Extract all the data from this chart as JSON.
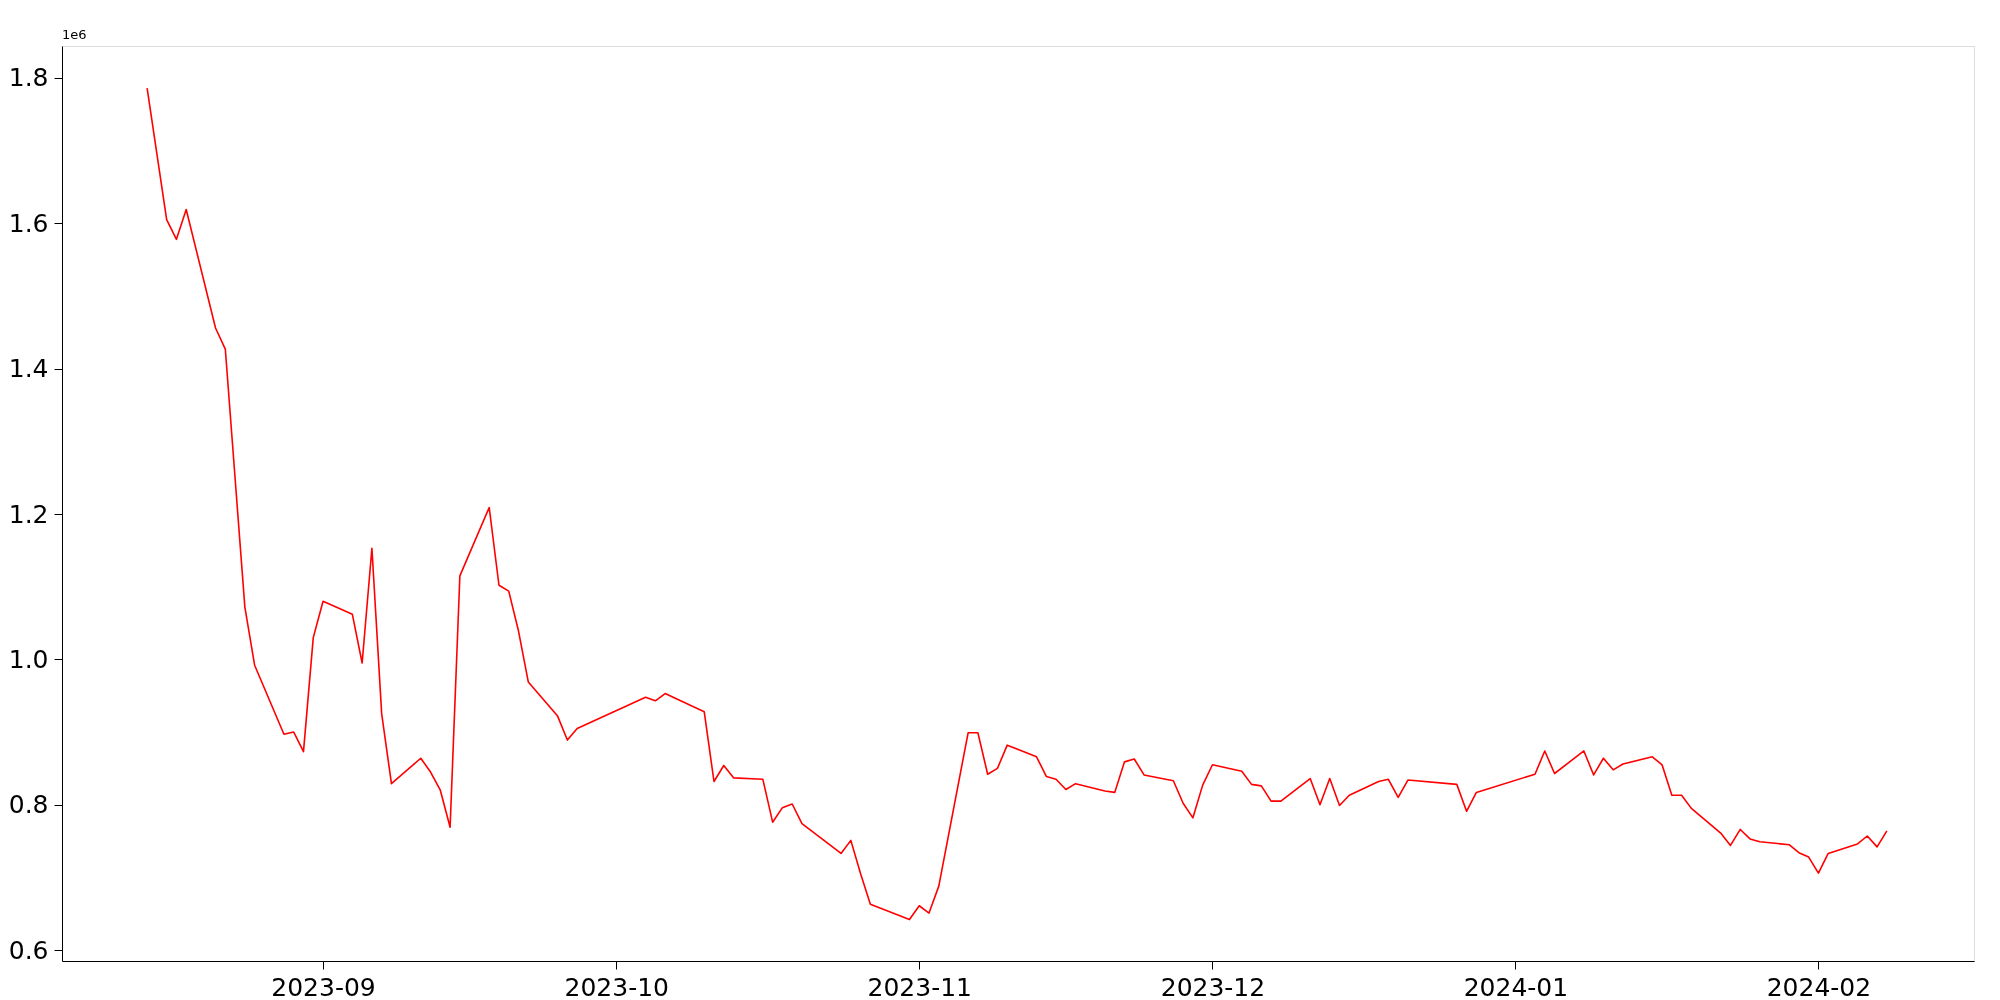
{
  "chart_data": {
    "type": "line",
    "annotations": [
      "1e6"
    ],
    "x": [
      "2023-08-14",
      "2023-08-16",
      "2023-08-17",
      "2023-08-18",
      "2023-08-21",
      "2023-08-22",
      "2023-08-24",
      "2023-08-25",
      "2023-08-28",
      "2023-08-29",
      "2023-08-30",
      "2023-08-31",
      "2023-09-01",
      "2023-09-04",
      "2023-09-05",
      "2023-09-06",
      "2023-09-07",
      "2023-09-08",
      "2023-09-11",
      "2023-09-12",
      "2023-09-13",
      "2023-09-14",
      "2023-09-15",
      "2023-09-18",
      "2023-09-19",
      "2023-09-20",
      "2023-09-21",
      "2023-09-22",
      "2023-09-25",
      "2023-09-26",
      "2023-09-27",
      "2023-10-04",
      "2023-10-05",
      "2023-10-06",
      "2023-10-10",
      "2023-10-11",
      "2023-10-12",
      "2023-10-13",
      "2023-10-16",
      "2023-10-17",
      "2023-10-18",
      "2023-10-19",
      "2023-10-20",
      "2023-10-24",
      "2023-10-25",
      "2023-10-26",
      "2023-10-27",
      "2023-10-31",
      "2023-11-01",
      "2023-11-02",
      "2023-11-03",
      "2023-11-06",
      "2023-11-07",
      "2023-11-08",
      "2023-11-09",
      "2023-11-10",
      "2023-11-13",
      "2023-11-14",
      "2023-11-15",
      "2023-11-16",
      "2023-11-17",
      "2023-11-20",
      "2023-11-21",
      "2023-11-22",
      "2023-11-23",
      "2023-11-24",
      "2023-11-27",
      "2023-11-28",
      "2023-11-29",
      "2023-11-30",
      "2023-12-01",
      "2023-12-04",
      "2023-12-05",
      "2023-12-06",
      "2023-12-07",
      "2023-12-08",
      "2023-12-11",
      "2023-12-12",
      "2023-12-13",
      "2023-12-14",
      "2023-12-15",
      "2023-12-18",
      "2023-12-19",
      "2023-12-20",
      "2023-12-21",
      "2023-12-26",
      "2023-12-27",
      "2023-12-28",
      "2024-01-03",
      "2024-01-04",
      "2024-01-05",
      "2024-01-08",
      "2024-01-09",
      "2024-01-10",
      "2024-01-11",
      "2024-01-12",
      "2024-01-15",
      "2024-01-16",
      "2024-01-17",
      "2024-01-18",
      "2024-01-19",
      "2024-01-22",
      "2024-01-23",
      "2024-01-24",
      "2024-01-25",
      "2024-01-26",
      "2024-01-29",
      "2024-01-30",
      "2024-01-31",
      "2024-02-01",
      "2024-02-02",
      "2024-02-05",
      "2024-02-06",
      "2024-02-07",
      "2024-02-08"
    ],
    "series": [
      {
        "color": "#ff0000",
        "values": [
          1.786,
          1.605,
          1.578,
          1.619,
          1.456,
          1.427,
          1.072,
          0.992,
          0.897,
          0.9,
          0.873,
          1.03,
          1.08,
          1.062,
          0.995,
          1.153,
          0.925,
          0.829,
          0.864,
          0.845,
          0.82,
          0.769,
          1.115,
          1.209,
          1.102,
          1.094,
          1.039,
          0.969,
          0.922,
          0.889,
          0.905,
          0.948,
          0.943,
          0.953,
          0.928,
          0.832,
          0.854,
          0.837,
          0.835,
          0.776,
          0.796,
          0.801,
          0.774,
          0.733,
          0.751,
          0.705,
          0.663,
          0.642,
          0.661,
          0.651,
          0.688,
          0.899,
          0.899,
          0.842,
          0.85,
          0.882,
          0.866,
          0.839,
          0.835,
          0.821,
          0.829,
          0.819,
          0.817,
          0.859,
          0.863,
          0.841,
          0.833,
          0.802,
          0.782,
          0.827,
          0.855,
          0.846,
          0.828,
          0.826,
          0.805,
          0.805,
          0.836,
          0.8,
          0.836,
          0.799,
          0.813,
          0.832,
          0.835,
          0.81,
          0.834,
          0.828,
          0.791,
          0.817,
          0.842,
          0.874,
          0.843,
          0.874,
          0.841,
          0.864,
          0.848,
          0.856,
          0.866,
          0.855,
          0.813,
          0.813,
          0.795,
          0.761,
          0.744,
          0.766,
          0.753,
          0.749,
          0.745,
          0.734,
          0.728,
          0.706,
          0.733,
          0.746,
          0.757,
          0.742,
          0.764
        ]
      }
    ],
    "xlim": [
      "2023-08-05T07:00",
      "2024-02-16T22:00"
    ],
    "xticks": [
      {
        "value": "2023-09-01",
        "label": "2023-09"
      },
      {
        "value": "2023-10-01",
        "label": "2023-10"
      },
      {
        "value": "2023-11-01",
        "label": "2023-11"
      },
      {
        "value": "2023-12-01",
        "label": "2023-12"
      },
      {
        "value": "2024-01-01",
        "label": "2024-01"
      },
      {
        "value": "2024-02-01",
        "label": "2024-02"
      }
    ],
    "ylim": [
      0.585,
      1.844
    ],
    "yticks": [
      0.6,
      0.8,
      {
        "value": 1,
        "label": "1.0"
      },
      1.2,
      1.4,
      1.6,
      1.8
    ],
    "grid": false,
    "marker": "none",
    "line_style": "solid"
  }
}
